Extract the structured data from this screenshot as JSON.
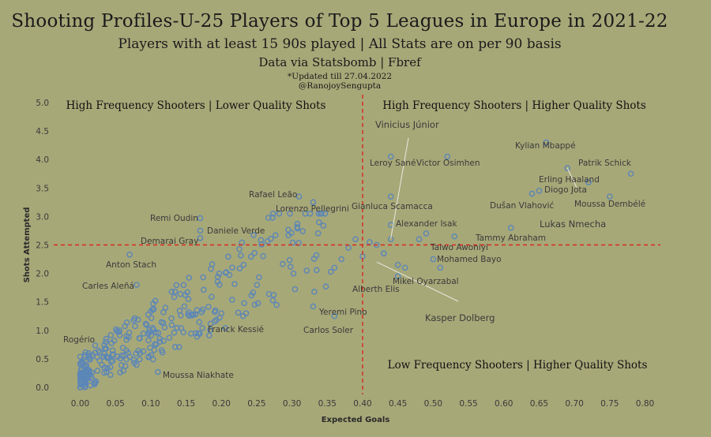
{
  "header": {
    "title": "Shooting Profiles-U-25 Players of Top 5 Leagues in Europe in 2021-22",
    "subtitle": "Players with at least 15 90s played | All Stats are on per 90 basis",
    "source": "Data via Statsbomb | Fbref",
    "updated": "*Updated till 27.04.2022",
    "handle": "@RanojoySengupta"
  },
  "colors": {
    "background": "#a7a878",
    "points": "#5b86b8",
    "reference_lines": "#d9281e",
    "leader_lines": "#e8e8e0"
  },
  "chart_data": {
    "type": "scatter",
    "xlabel": "Expected Goals",
    "ylabel": "Shots Attempted",
    "xlim": [
      -0.02,
      0.82
    ],
    "ylim": [
      -0.1,
      5.05
    ],
    "xticks": [
      "0.00",
      "0.05",
      "0.10",
      "0.15",
      "0.20",
      "0.25",
      "0.30",
      "0.35",
      "0.40",
      "0.45",
      "0.50",
      "0.55",
      "0.60",
      "0.65",
      "0.70",
      "0.75",
      "0.80"
    ],
    "yticks": [
      "0.0",
      "0.5",
      "1.0",
      "1.5",
      "2.0",
      "2.5",
      "3.0",
      "3.5",
      "4.0",
      "4.5",
      "5.0"
    ],
    "reference_lines": {
      "x": 0.4,
      "y": 2.5
    },
    "quadrant_labels": [
      "High Frequency Shooters | Lower Quality Shots",
      "High Frequency Shooters | Higher Quality Shots",
      "Low Frequency Shooters | Higher Quality Shots"
    ],
    "labeled_players": [
      {
        "name": "Kylian Mbappé",
        "x": 0.66,
        "y": 4.3
      },
      {
        "name": "Patrik Schick",
        "x": 0.78,
        "y": 3.75
      },
      {
        "name": "Erling Haaland",
        "x": 0.72,
        "y": 3.6
      },
      {
        "name": "Diogo Jota",
        "x": 0.65,
        "y": 3.45
      },
      {
        "name": "Dušan Vlahović",
        "x": 0.64,
        "y": 3.4
      },
      {
        "name": "Moussa Dembélé",
        "x": 0.75,
        "y": 3.35
      },
      {
        "name": "Lukas Nmecha",
        "x": 0.69,
        "y": 3.85
      },
      {
        "name": "Tammy Abraham",
        "x": 0.61,
        "y": 2.8
      },
      {
        "name": "Vinicius Júnior",
        "x": 0.44,
        "y": 2.6
      },
      {
        "name": "Leroy Sané",
        "x": 0.44,
        "y": 4.05
      },
      {
        "name": "Victor Osimhen",
        "x": 0.52,
        "y": 4.05
      },
      {
        "name": "Gianluca Scamacca",
        "x": 0.44,
        "y": 3.35
      },
      {
        "name": "Alexander Isak",
        "x": 0.44,
        "y": 2.85
      },
      {
        "name": "Taiwo Awoniyi",
        "x": 0.53,
        "y": 2.65
      },
      {
        "name": "Mohamed Bayo",
        "x": 0.5,
        "y": 2.25
      },
      {
        "name": "Mikel Oyarzabal",
        "x": 0.45,
        "y": 1.95
      },
      {
        "name": "Alberth Elis",
        "x": 0.43,
        "y": 2.35
      },
      {
        "name": "Kasper Dolberg",
        "x": 0.45,
        "y": 2.15
      },
      {
        "name": "Rafael Leão",
        "x": 0.31,
        "y": 3.35
      },
      {
        "name": "Lorenzo Pellegrini",
        "x": 0.33,
        "y": 3.25
      },
      {
        "name": "Remi Oudin",
        "x": 0.17,
        "y": 2.97
      },
      {
        "name": "Daniele Verde",
        "x": 0.17,
        "y": 2.75
      },
      {
        "name": "Demarai Gray",
        "x": 0.17,
        "y": 2.62
      },
      {
        "name": "Anton Stach",
        "x": 0.07,
        "y": 2.33
      },
      {
        "name": "Carles Aleñá",
        "x": 0.08,
        "y": 1.8
      },
      {
        "name": "Yeremi Pino",
        "x": 0.33,
        "y": 1.42
      },
      {
        "name": "Carlos Soler",
        "x": 0.36,
        "y": 1.25
      },
      {
        "name": "Franck Kessié",
        "x": 0.2,
        "y": 1.3
      },
      {
        "name": "Rogério",
        "x": 0.0,
        "y": 0.0
      },
      {
        "name": "Moussa Niakhate",
        "x": 0.11,
        "y": 0.27
      }
    ]
  }
}
